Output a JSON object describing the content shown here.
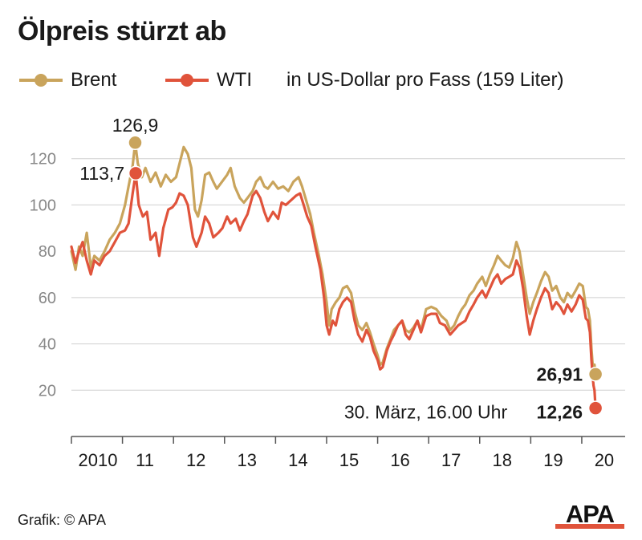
{
  "header": {
    "title": "Ölpreis stürzt ab"
  },
  "legend": {
    "unit": "in US-Dollar pro Fass (159 Liter)"
  },
  "footer": {
    "credit": "Grafik: © APA",
    "logo_text": "APA"
  },
  "colors": {
    "brent": "#c9a45c",
    "wti": "#e0533b",
    "grid": "#cfcfcf",
    "axis": "#555555",
    "tick_text": "#888888"
  },
  "chart_data": {
    "type": "line",
    "title": "Ölpreis stürzt ab",
    "subtitle": "in US-Dollar pro Fass (159 Liter)",
    "xlim": [
      2010.0,
      2020.85
    ],
    "ylim": [
      0,
      140
    ],
    "yticks": [
      20,
      40,
      60,
      80,
      100,
      120
    ],
    "ytick_labels": [
      "20",
      "40",
      "60",
      "80",
      "100",
      "120"
    ],
    "xtick_positions": [
      2010,
      2011,
      2012,
      2013,
      2014,
      2015,
      2016,
      2017,
      2018,
      2019,
      2020
    ],
    "xtick_labels": [
      "2010",
      "11",
      "12",
      "13",
      "14",
      "15",
      "16",
      "17",
      "18",
      "19",
      "20"
    ],
    "grid": true,
    "legend_position": "top-left",
    "series": [
      {
        "name": "Brent",
        "color": "#c9a45c",
        "points": [
          [
            2010.0,
            80
          ],
          [
            2010.08,
            72
          ],
          [
            2010.15,
            82
          ],
          [
            2010.22,
            78
          ],
          [
            2010.3,
            88
          ],
          [
            2010.38,
            73
          ],
          [
            2010.45,
            78
          ],
          [
            2010.55,
            76
          ],
          [
            2010.65,
            80
          ],
          [
            2010.75,
            85
          ],
          [
            2010.85,
            88
          ],
          [
            2010.95,
            92
          ],
          [
            2011.05,
            100
          ],
          [
            2011.12,
            108
          ],
          [
            2011.2,
            117
          ],
          [
            2011.25,
            126.9
          ],
          [
            2011.3,
            118
          ],
          [
            2011.38,
            112
          ],
          [
            2011.45,
            116
          ],
          [
            2011.55,
            110
          ],
          [
            2011.65,
            114
          ],
          [
            2011.75,
            108
          ],
          [
            2011.85,
            113
          ],
          [
            2011.95,
            110
          ],
          [
            2012.05,
            112
          ],
          [
            2012.12,
            118
          ],
          [
            2012.2,
            125
          ],
          [
            2012.28,
            122
          ],
          [
            2012.35,
            116
          ],
          [
            2012.42,
            98
          ],
          [
            2012.48,
            95
          ],
          [
            2012.55,
            102
          ],
          [
            2012.62,
            113
          ],
          [
            2012.7,
            114
          ],
          [
            2012.78,
            110
          ],
          [
            2012.85,
            107
          ],
          [
            2012.95,
            110
          ],
          [
            2013.05,
            113
          ],
          [
            2013.12,
            116
          ],
          [
            2013.2,
            108
          ],
          [
            2013.3,
            103
          ],
          [
            2013.38,
            101
          ],
          [
            2013.45,
            103
          ],
          [
            2013.55,
            106
          ],
          [
            2013.62,
            110
          ],
          [
            2013.7,
            112
          ],
          [
            2013.78,
            108
          ],
          [
            2013.85,
            107
          ],
          [
            2013.95,
            110
          ],
          [
            2014.05,
            107
          ],
          [
            2014.15,
            108
          ],
          [
            2014.25,
            106
          ],
          [
            2014.35,
            110
          ],
          [
            2014.45,
            112
          ],
          [
            2014.52,
            108
          ],
          [
            2014.6,
            102
          ],
          [
            2014.68,
            96
          ],
          [
            2014.75,
            88
          ],
          [
            2014.85,
            78
          ],
          [
            2014.92,
            70
          ],
          [
            2015.0,
            58
          ],
          [
            2015.05,
            48
          ],
          [
            2015.1,
            55
          ],
          [
            2015.18,
            58
          ],
          [
            2015.25,
            60
          ],
          [
            2015.32,
            64
          ],
          [
            2015.4,
            65
          ],
          [
            2015.48,
            62
          ],
          [
            2015.55,
            54
          ],
          [
            2015.62,
            48
          ],
          [
            2015.7,
            46
          ],
          [
            2015.78,
            49
          ],
          [
            2015.85,
            45
          ],
          [
            2015.92,
            40
          ],
          [
            2016.0,
            35
          ],
          [
            2016.05,
            31
          ],
          [
            2016.1,
            32
          ],
          [
            2016.18,
            38
          ],
          [
            2016.25,
            42
          ],
          [
            2016.32,
            46
          ],
          [
            2016.4,
            48
          ],
          [
            2016.48,
            50
          ],
          [
            2016.55,
            46
          ],
          [
            2016.62,
            45
          ],
          [
            2016.7,
            47
          ],
          [
            2016.78,
            50
          ],
          [
            2016.85,
            46
          ],
          [
            2016.95,
            55
          ],
          [
            2017.05,
            56
          ],
          [
            2017.15,
            55
          ],
          [
            2017.25,
            52
          ],
          [
            2017.35,
            50
          ],
          [
            2017.42,
            46
          ],
          [
            2017.5,
            48
          ],
          [
            2017.58,
            52
          ],
          [
            2017.65,
            55
          ],
          [
            2017.72,
            57
          ],
          [
            2017.8,
            61
          ],
          [
            2017.88,
            63
          ],
          [
            2017.95,
            66
          ],
          [
            2018.05,
            69
          ],
          [
            2018.12,
            65
          ],
          [
            2018.2,
            70
          ],
          [
            2018.28,
            74
          ],
          [
            2018.35,
            78
          ],
          [
            2018.42,
            76
          ],
          [
            2018.5,
            74
          ],
          [
            2018.58,
            73
          ],
          [
            2018.65,
            77
          ],
          [
            2018.72,
            84
          ],
          [
            2018.78,
            80
          ],
          [
            2018.85,
            70
          ],
          [
            2018.92,
            60
          ],
          [
            2018.98,
            53
          ],
          [
            2019.05,
            58
          ],
          [
            2019.12,
            62
          ],
          [
            2019.2,
            67
          ],
          [
            2019.28,
            71
          ],
          [
            2019.35,
            69
          ],
          [
            2019.42,
            63
          ],
          [
            2019.5,
            65
          ],
          [
            2019.58,
            60
          ],
          [
            2019.65,
            58
          ],
          [
            2019.72,
            62
          ],
          [
            2019.8,
            60
          ],
          [
            2019.88,
            63
          ],
          [
            2019.95,
            66
          ],
          [
            2020.02,
            65
          ],
          [
            2020.08,
            56
          ],
          [
            2020.12,
            55
          ],
          [
            2020.16,
            50
          ],
          [
            2020.19,
            38
          ],
          [
            2020.21,
            32
          ],
          [
            2020.23,
            27
          ],
          [
            2020.25,
            31
          ],
          [
            2020.27,
            26.91
          ]
        ]
      },
      {
        "name": "WTI",
        "color": "#e0533b",
        "points": [
          [
            2010.0,
            82
          ],
          [
            2010.08,
            75
          ],
          [
            2010.15,
            80
          ],
          [
            2010.22,
            84
          ],
          [
            2010.3,
            76
          ],
          [
            2010.38,
            70
          ],
          [
            2010.45,
            76
          ],
          [
            2010.55,
            74
          ],
          [
            2010.65,
            78
          ],
          [
            2010.75,
            80
          ],
          [
            2010.85,
            84
          ],
          [
            2010.95,
            88
          ],
          [
            2011.05,
            89
          ],
          [
            2011.12,
            92
          ],
          [
            2011.2,
            105
          ],
          [
            2011.26,
            113.7
          ],
          [
            2011.32,
            100
          ],
          [
            2011.4,
            95
          ],
          [
            2011.48,
            97
          ],
          [
            2011.55,
            85
          ],
          [
            2011.65,
            88
          ],
          [
            2011.72,
            78
          ],
          [
            2011.8,
            90
          ],
          [
            2011.9,
            98
          ],
          [
            2011.98,
            99
          ],
          [
            2012.05,
            101
          ],
          [
            2012.12,
            105
          ],
          [
            2012.2,
            104
          ],
          [
            2012.28,
            100
          ],
          [
            2012.38,
            86
          ],
          [
            2012.45,
            82
          ],
          [
            2012.55,
            88
          ],
          [
            2012.62,
            95
          ],
          [
            2012.7,
            92
          ],
          [
            2012.78,
            86
          ],
          [
            2012.88,
            88
          ],
          [
            2012.96,
            90
          ],
          [
            2013.05,
            95
          ],
          [
            2013.12,
            92
          ],
          [
            2013.22,
            94
          ],
          [
            2013.3,
            89
          ],
          [
            2013.38,
            93
          ],
          [
            2013.45,
            96
          ],
          [
            2013.55,
            104
          ],
          [
            2013.62,
            106
          ],
          [
            2013.7,
            103
          ],
          [
            2013.78,
            97
          ],
          [
            2013.85,
            93
          ],
          [
            2013.95,
            97
          ],
          [
            2014.05,
            94
          ],
          [
            2014.12,
            101
          ],
          [
            2014.2,
            100
          ],
          [
            2014.3,
            102
          ],
          [
            2014.4,
            104
          ],
          [
            2014.48,
            105
          ],
          [
            2014.55,
            100
          ],
          [
            2014.62,
            95
          ],
          [
            2014.7,
            91
          ],
          [
            2014.78,
            82
          ],
          [
            2014.88,
            72
          ],
          [
            2014.95,
            60
          ],
          [
            2015.0,
            48
          ],
          [
            2015.05,
            44
          ],
          [
            2015.12,
            50
          ],
          [
            2015.18,
            48
          ],
          [
            2015.25,
            55
          ],
          [
            2015.32,
            58
          ],
          [
            2015.4,
            60
          ],
          [
            2015.48,
            58
          ],
          [
            2015.55,
            50
          ],
          [
            2015.62,
            44
          ],
          [
            2015.7,
            41
          ],
          [
            2015.78,
            46
          ],
          [
            2015.85,
            43
          ],
          [
            2015.92,
            37
          ],
          [
            2016.0,
            33
          ],
          [
            2016.05,
            29
          ],
          [
            2016.1,
            30
          ],
          [
            2016.18,
            37
          ],
          [
            2016.25,
            41
          ],
          [
            2016.32,
            44
          ],
          [
            2016.4,
            48
          ],
          [
            2016.48,
            50
          ],
          [
            2016.55,
            44
          ],
          [
            2016.62,
            42
          ],
          [
            2016.7,
            46
          ],
          [
            2016.78,
            50
          ],
          [
            2016.85,
            45
          ],
          [
            2016.95,
            52
          ],
          [
            2017.05,
            53
          ],
          [
            2017.15,
            53
          ],
          [
            2017.22,
            49
          ],
          [
            2017.32,
            48
          ],
          [
            2017.42,
            44
          ],
          [
            2017.5,
            46
          ],
          [
            2017.58,
            48
          ],
          [
            2017.65,
            49
          ],
          [
            2017.72,
            50
          ],
          [
            2017.8,
            54
          ],
          [
            2017.88,
            57
          ],
          [
            2017.95,
            60
          ],
          [
            2018.05,
            63
          ],
          [
            2018.12,
            60
          ],
          [
            2018.2,
            64
          ],
          [
            2018.28,
            68
          ],
          [
            2018.35,
            70
          ],
          [
            2018.42,
            66
          ],
          [
            2018.5,
            68
          ],
          [
            2018.58,
            69
          ],
          [
            2018.65,
            70
          ],
          [
            2018.72,
            76
          ],
          [
            2018.78,
            73
          ],
          [
            2018.85,
            64
          ],
          [
            2018.92,
            52
          ],
          [
            2018.98,
            44
          ],
          [
            2019.05,
            50
          ],
          [
            2019.12,
            55
          ],
          [
            2019.2,
            60
          ],
          [
            2019.28,
            64
          ],
          [
            2019.35,
            62
          ],
          [
            2019.42,
            55
          ],
          [
            2019.5,
            58
          ],
          [
            2019.58,
            56
          ],
          [
            2019.65,
            53
          ],
          [
            2019.72,
            57
          ],
          [
            2019.8,
            54
          ],
          [
            2019.88,
            57
          ],
          [
            2019.95,
            61
          ],
          [
            2020.02,
            59
          ],
          [
            2020.08,
            51
          ],
          [
            2020.12,
            50
          ],
          [
            2020.16,
            45
          ],
          [
            2020.19,
            33
          ],
          [
            2020.21,
            27
          ],
          [
            2020.23,
            22
          ],
          [
            2020.25,
            20
          ],
          [
            2020.27,
            12.26
          ]
        ]
      }
    ],
    "annotations": [
      {
        "text": "126,9",
        "series": "Brent",
        "x": 2011.25,
        "y": 126.9,
        "bold": false
      },
      {
        "text": "113,7",
        "series": "WTI",
        "x": 2011.26,
        "y": 113.7,
        "bold": false
      },
      {
        "text": "26,91",
        "series": "Brent",
        "x": 2020.27,
        "y": 26.91,
        "bold": true
      },
      {
        "text": "12,26",
        "series": "WTI",
        "x": 2020.27,
        "y": 12.26,
        "bold": true
      },
      {
        "text": "30. März, 16.00 Uhr",
        "x": 2020.27,
        "y": 12.26,
        "bold": false
      }
    ]
  }
}
